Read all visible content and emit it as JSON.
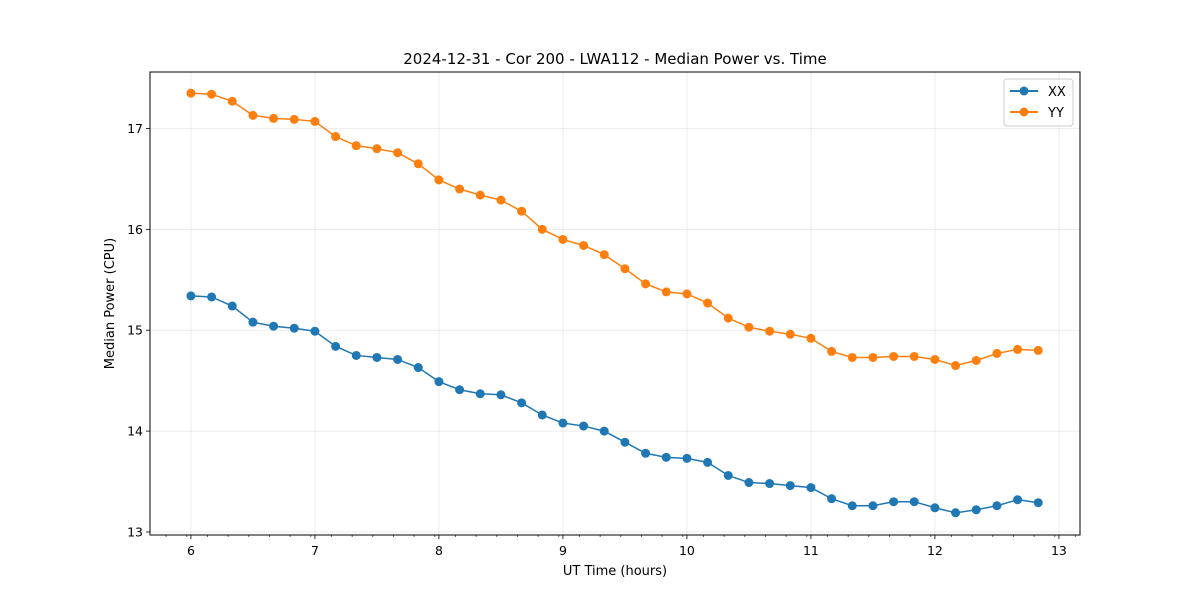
{
  "chart_data": {
    "type": "line",
    "title": "2024-12-31 - Cor 200 - LWA112 - Median Power vs. Time",
    "xlabel": "UT Time (hours)",
    "ylabel": "Median Power (CPU)",
    "xlim": [
      5.67,
      13.17
    ],
    "ylim": [
      12.97,
      17.56
    ],
    "xticks": [
      6,
      7,
      8,
      9,
      10,
      11,
      12,
      13
    ],
    "xtick_labels": [
      "6",
      "7",
      "8",
      "9",
      "10",
      "11",
      "12",
      "13"
    ],
    "yticks": [
      13,
      14,
      15,
      16,
      17
    ],
    "ytick_labels": [
      "13",
      "14",
      "15",
      "16",
      "17"
    ],
    "grid": true,
    "legend_position": "top-right",
    "x": [
      6.0,
      6.1667,
      6.3333,
      6.5,
      6.6667,
      6.8333,
      7.0,
      7.1667,
      7.3333,
      7.5,
      7.6667,
      7.8333,
      8.0,
      8.1667,
      8.3333,
      8.5,
      8.6667,
      8.8333,
      9.0,
      9.1667,
      9.3333,
      9.5,
      9.6667,
      9.8333,
      10.0,
      10.1667,
      10.3333,
      10.5,
      10.6667,
      10.8333,
      11.0,
      11.1667,
      11.3333,
      11.5,
      11.6667,
      11.8333,
      12.0,
      12.1667,
      12.3333,
      12.5,
      12.6667,
      12.8333
    ],
    "series": [
      {
        "name": "XX",
        "color": "#1f77b4",
        "values": [
          15.34,
          15.33,
          15.24,
          15.08,
          15.04,
          15.02,
          14.99,
          14.84,
          14.75,
          14.73,
          14.71,
          14.63,
          14.49,
          14.41,
          14.37,
          14.36,
          14.28,
          14.16,
          14.08,
          14.05,
          14.0,
          13.89,
          13.78,
          13.74,
          13.73,
          13.69,
          13.56,
          13.49,
          13.48,
          13.46,
          13.44,
          13.33,
          13.26,
          13.26,
          13.3,
          13.3,
          13.24,
          13.19,
          13.22,
          13.26,
          13.32,
          13.29
        ]
      },
      {
        "name": "YY",
        "color": "#ff7f0e",
        "values": [
          17.35,
          17.34,
          17.27,
          17.13,
          17.1,
          17.09,
          17.07,
          16.92,
          16.83,
          16.8,
          16.76,
          16.65,
          16.49,
          16.4,
          16.34,
          16.29,
          16.18,
          16.0,
          15.9,
          15.84,
          15.75,
          15.61,
          15.46,
          15.38,
          15.36,
          15.27,
          15.12,
          15.03,
          14.99,
          14.96,
          14.92,
          14.79,
          14.73,
          14.73,
          14.74,
          14.74,
          14.71,
          14.65,
          14.7,
          14.77,
          14.81,
          14.8
        ]
      }
    ]
  }
}
